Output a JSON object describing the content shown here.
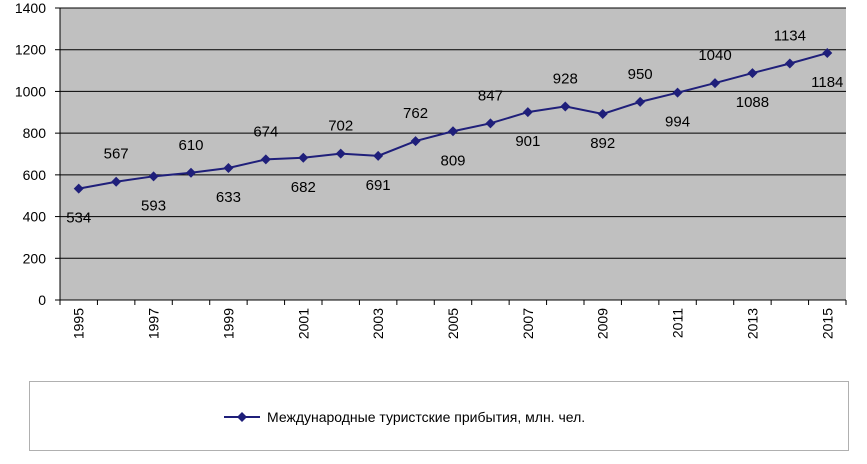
{
  "chart_data": {
    "type": "line",
    "x": [
      1995,
      1996,
      1997,
      1998,
      1999,
      2000,
      2001,
      2002,
      2003,
      2004,
      2005,
      2006,
      2007,
      2008,
      2009,
      2010,
      2011,
      2012,
      2013,
      2014,
      2015
    ],
    "tick_labels": [
      "1995",
      "1997",
      "1999",
      "2001",
      "2003",
      "2005",
      "2007",
      "2009",
      "2011",
      "2013",
      "2015"
    ],
    "y_ticks": [
      0,
      200,
      400,
      600,
      800,
      1000,
      1200,
      1400
    ],
    "ylim": [
      0,
      1400
    ],
    "series": [
      {
        "name": "Международные туристские прибытия, млн. чел.",
        "color": "#1f1f7a",
        "values": [
          534,
          567,
          593,
          610,
          633,
          674,
          682,
          702,
          691,
          762,
          809,
          847,
          901,
          928,
          892,
          950,
          994,
          1040,
          1088,
          1134,
          1184
        ]
      }
    ],
    "title": "",
    "xlabel": "",
    "ylabel": "",
    "grid": true,
    "plot_background": "#c0c0c0",
    "legend_position": "bottom"
  }
}
